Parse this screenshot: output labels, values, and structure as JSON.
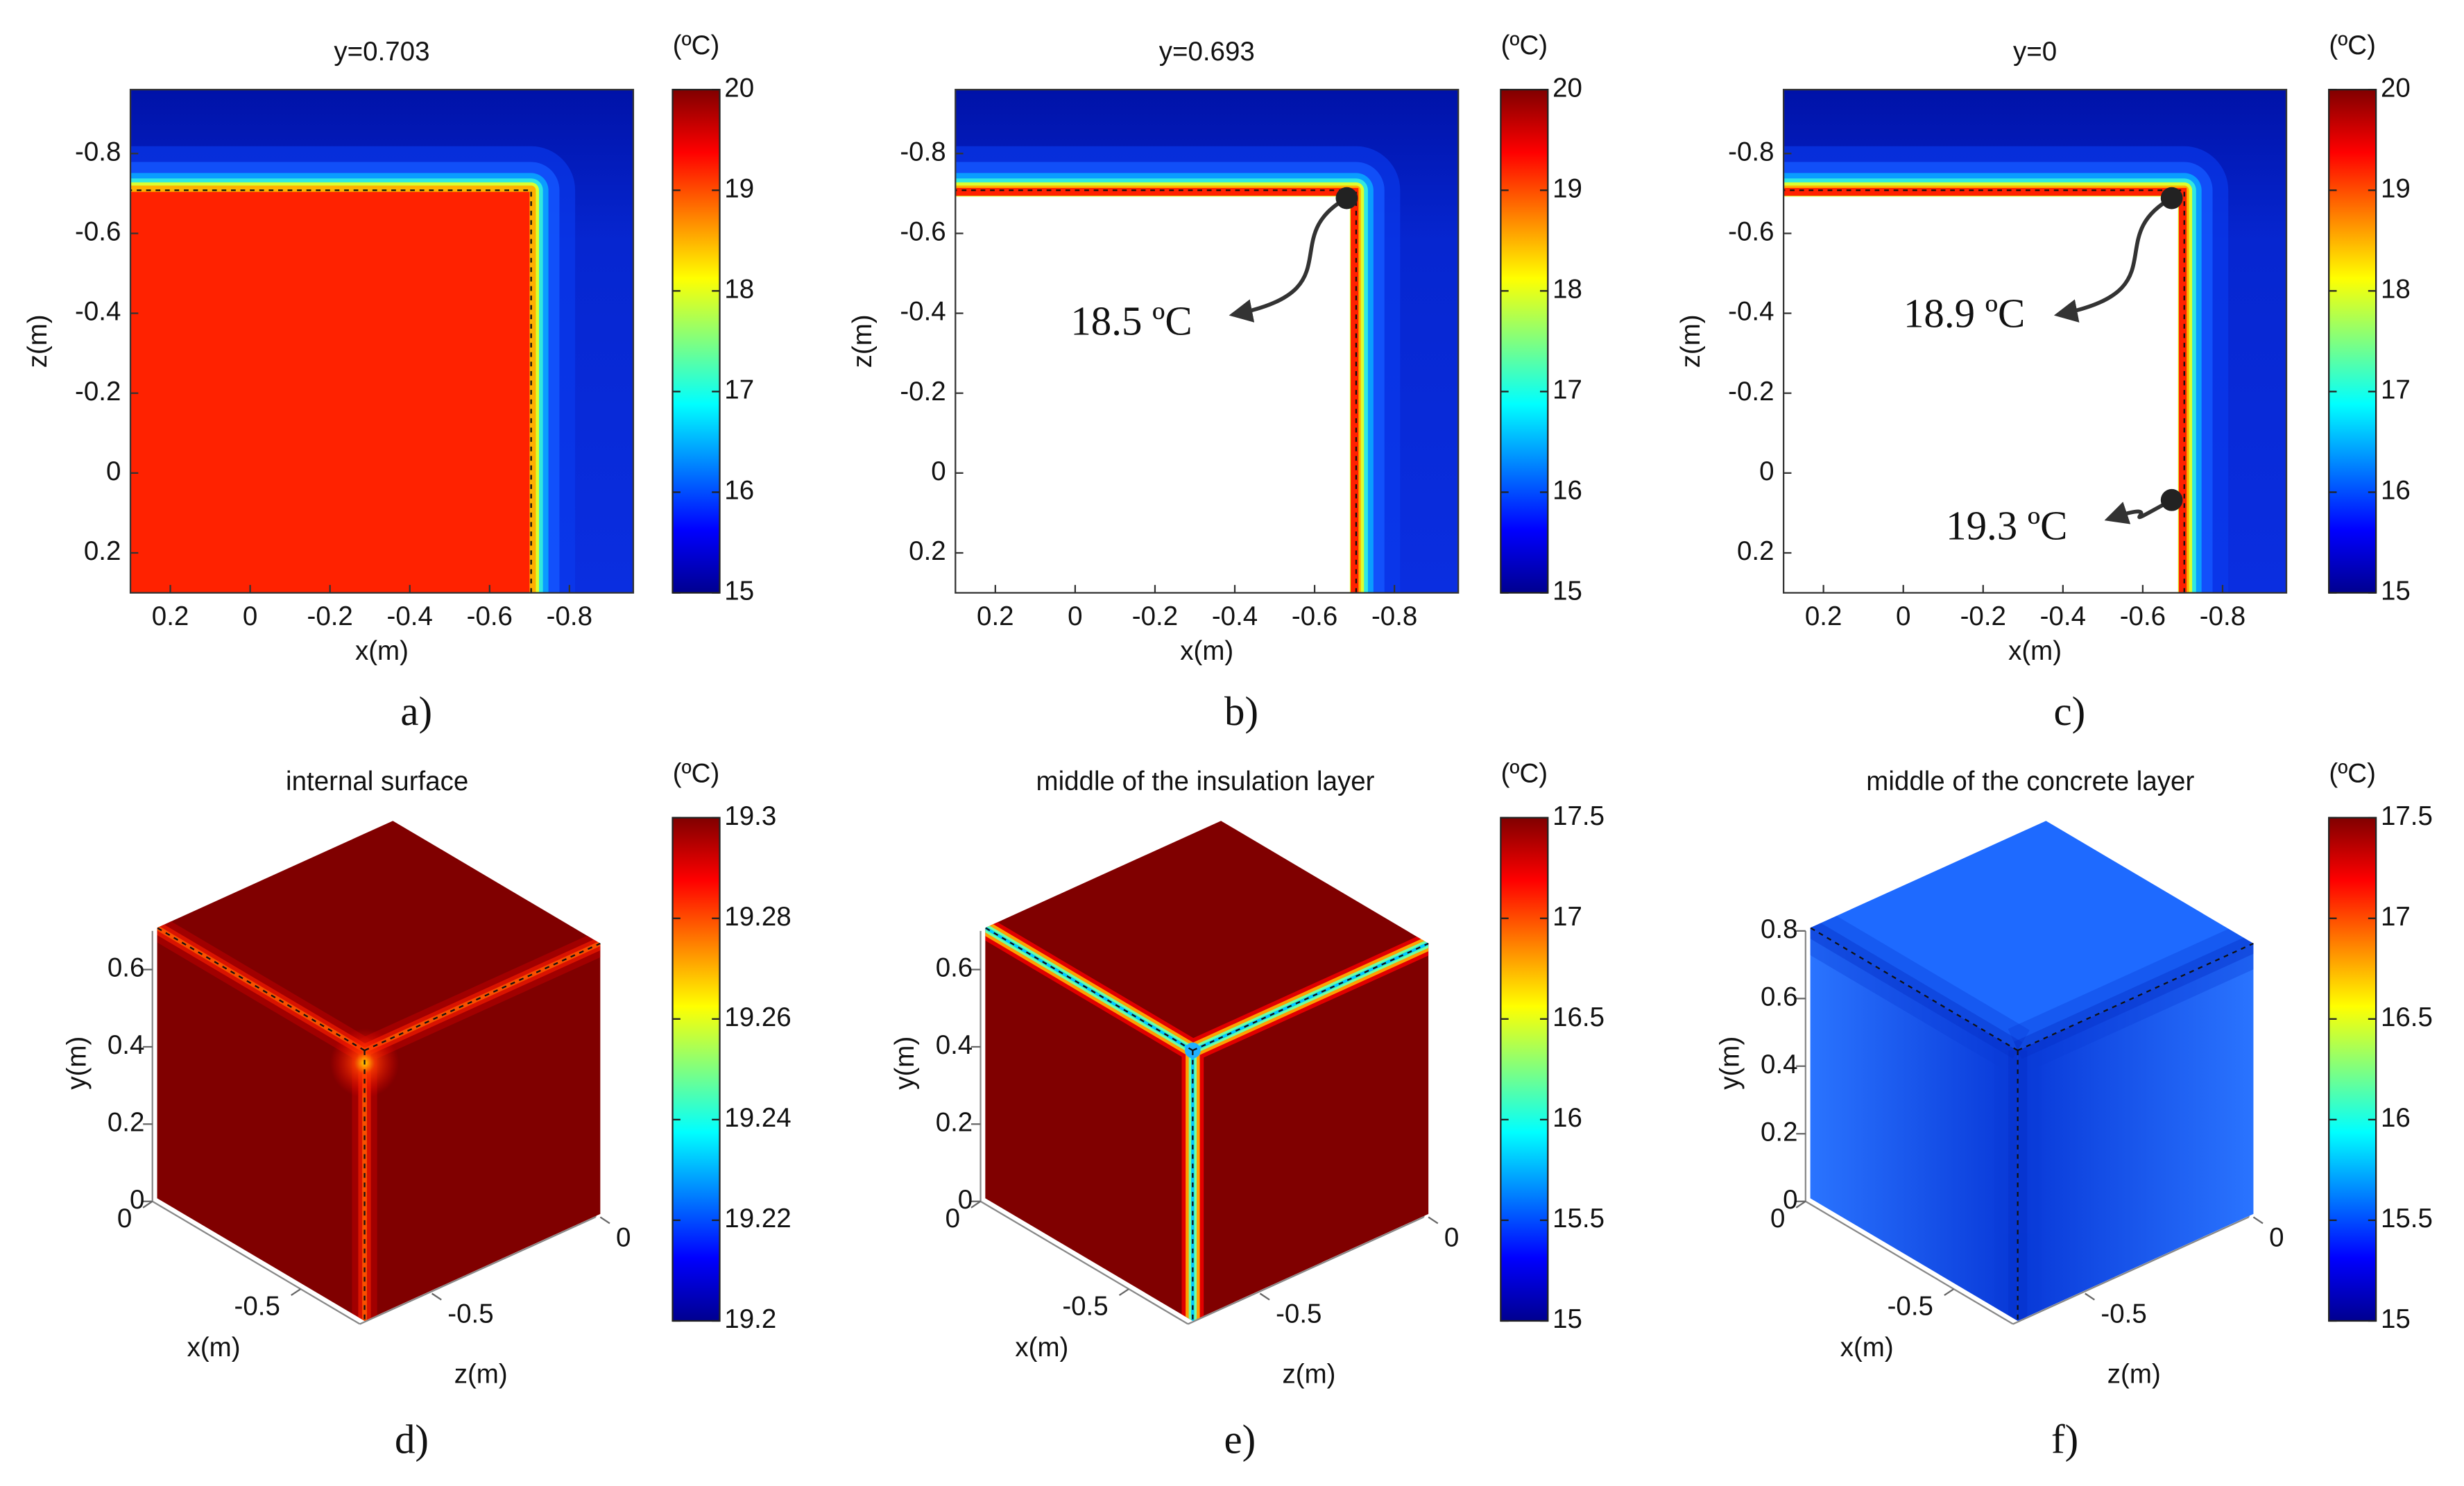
{
  "chart_data": [
    {
      "type": "heatmap",
      "title": "y=0.703",
      "panel_label": "a)",
      "xlabel": "x(m)",
      "ylabel": "z(m)",
      "xlim": [
        0.3,
        -0.96
      ],
      "ylim": [
        0.3,
        -0.96
      ],
      "xticks": [
        0.2,
        0,
        -0.2,
        -0.4,
        -0.6,
        -0.8
      ],
      "yticks": [
        -0.8,
        -0.6,
        -0.4,
        -0.2,
        0,
        0.2
      ],
      "colorbar": {
        "label": "(ºC)",
        "clim": [
          15,
          20
        ],
        "ticks": [
          15,
          16,
          17,
          18,
          19,
          20
        ]
      }
    },
    {
      "type": "heatmap",
      "title": "y=0.693",
      "panel_label": "b)",
      "xlabel": "x(m)",
      "ylabel": "z(m)",
      "xlim": [
        0.3,
        -0.96
      ],
      "ylim": [
        0.3,
        -0.96
      ],
      "xticks": [
        0.2,
        0,
        -0.2,
        -0.4,
        -0.6,
        -0.8
      ],
      "yticks": [
        -0.8,
        -0.6,
        -0.4,
        -0.2,
        0,
        0.2
      ],
      "colorbar": {
        "label": "(ºC)",
        "clim": [
          15,
          20
        ],
        "ticks": [
          15,
          16,
          17,
          18,
          19,
          20
        ]
      },
      "annotations": [
        "18.5 ºC"
      ]
    },
    {
      "type": "heatmap",
      "title": "y=0",
      "panel_label": "c)",
      "xlabel": "x(m)",
      "ylabel": "z(m)",
      "xlim": [
        0.3,
        -0.96
      ],
      "ylim": [
        0.3,
        -0.96
      ],
      "xticks": [
        0.2,
        0,
        -0.2,
        -0.4,
        -0.6,
        -0.8
      ],
      "yticks": [
        -0.8,
        -0.6,
        -0.4,
        -0.2,
        0,
        0.2
      ],
      "colorbar": {
        "label": "(ºC)",
        "clim": [
          15,
          20
        ],
        "ticks": [
          15,
          16,
          17,
          18,
          19,
          20
        ]
      },
      "annotations": [
        "18.9 ºC",
        "19.3 ºC"
      ]
    },
    {
      "type": "cube",
      "title": "internal surface",
      "panel_label": "d)",
      "xlabel": "x(m)",
      "ylabel": "y(m)",
      "zlabel": "z(m)",
      "xlim": [
        0,
        -0.7
      ],
      "ylim": [
        0,
        0.7
      ],
      "zlim": [
        -0.7,
        0
      ],
      "xticks": [
        0,
        -0.5
      ],
      "yticks": [
        0,
        0.2,
        0.4,
        0.6
      ],
      "zticks": [
        0,
        -0.5
      ],
      "colorbar": {
        "label": "(ºC)",
        "clim": [
          19.2,
          19.3
        ],
        "ticks": [
          19.2,
          19.22,
          19.24,
          19.26,
          19.28,
          19.3
        ]
      }
    },
    {
      "type": "cube",
      "title": "middle of the insulation layer",
      "panel_label": "e)",
      "xlabel": "x(m)",
      "ylabel": "y(m)",
      "zlabel": "z(m)",
      "xlim": [
        0,
        -0.7
      ],
      "ylim": [
        0,
        0.7
      ],
      "zlim": [
        -0.7,
        0
      ],
      "xticks": [
        0,
        -0.5
      ],
      "yticks": [
        0,
        0.2,
        0.4,
        0.6
      ],
      "zticks": [
        0,
        -0.5
      ],
      "colorbar": {
        "label": "(ºC)",
        "clim": [
          15,
          17.5
        ],
        "ticks": [
          15,
          15.5,
          16,
          16.5,
          17,
          17.5
        ]
      }
    },
    {
      "type": "cube",
      "title": "middle of the concrete layer",
      "panel_label": "f)",
      "xlabel": "x(m)",
      "ylabel": "y(m)",
      "zlabel": "z(m)",
      "xlim": [
        0,
        -0.7
      ],
      "ylim": [
        0,
        0.8
      ],
      "zlim": [
        -0.7,
        0
      ],
      "xticks": [
        0,
        -0.5
      ],
      "yticks": [
        0,
        0.2,
        0.4,
        0.6,
        0.8
      ],
      "zticks": [
        0,
        -0.5
      ],
      "colorbar": {
        "label": "(ºC)",
        "clim": [
          15,
          17.5
        ],
        "ticks": [
          15,
          15.5,
          16,
          16.5,
          17,
          17.5
        ]
      }
    }
  ]
}
